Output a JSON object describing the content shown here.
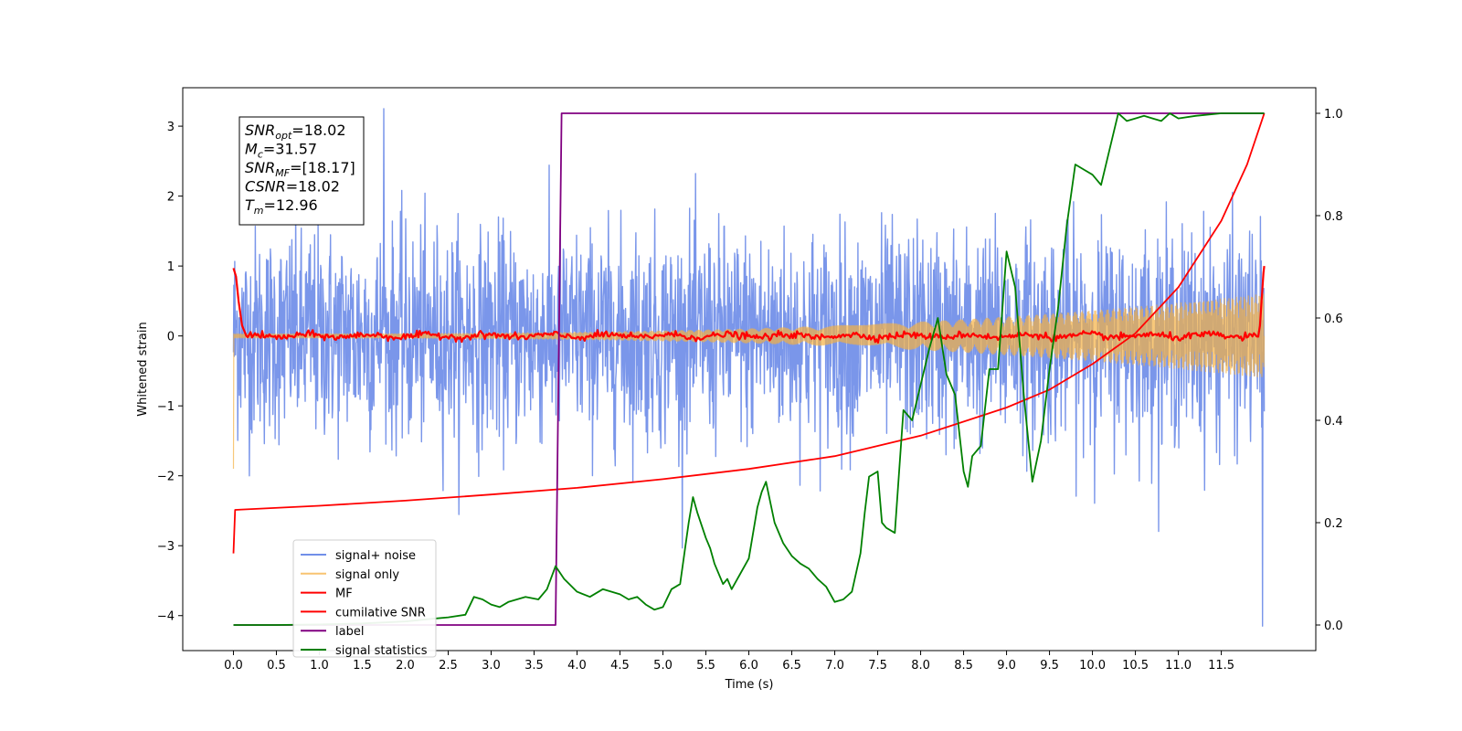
{
  "chart_data": {
    "type": "line",
    "xlabel": "Time (s)",
    "ylabel_left": "Whitened strain",
    "xlim": [
      -0.59,
      12.6
    ],
    "ylim_left": [
      -4.5,
      3.55
    ],
    "ylim_right": [
      -0.05,
      1.05
    ],
    "x_ticks": [
      "0.0",
      "0.5",
      "1.0",
      "1.5",
      "2.0",
      "2.5",
      "3.0",
      "3.5",
      "4.0",
      "4.5",
      "5.0",
      "5.5",
      "6.0",
      "6.5",
      "7.0",
      "7.5",
      "8.0",
      "8.5",
      "9.0",
      "9.5",
      "10.0",
      "10.5",
      "11.0",
      "11.5"
    ],
    "y_ticks_left": [
      "−4",
      "−3",
      "−2",
      "−1",
      "0",
      "1",
      "2",
      "3"
    ],
    "y_ticks_right": [
      "0.0",
      "0.2",
      "0.4",
      "0.6",
      "0.8",
      "1.0"
    ],
    "grid": false,
    "legend_placement": "lower-left",
    "stats_box": {
      "lines": [
        {
          "base": "SNR",
          "sub": "opt",
          "value": "=18.02"
        },
        {
          "base": "M",
          "sub": "c",
          "value": "=31.57"
        },
        {
          "base": "SNR",
          "sub": "MF",
          "value": "=[18.17]"
        },
        {
          "base": "CSNR",
          "sub": "",
          "value": "=18.02"
        },
        {
          "base": "T",
          "sub": "m",
          "value": "=12.96"
        }
      ]
    },
    "series": [
      {
        "name": "signal+ noise",
        "axis": "left",
        "color": "#4169e1",
        "kind": "noise",
        "t_range": [
          0.0,
          12.0
        ],
        "std": 0.75,
        "y_range_approx": [
          -4.15,
          3.25
        ]
      },
      {
        "name": "signal only",
        "axis": "left",
        "color": "#f5b041",
        "kind": "chirp",
        "t_range": [
          0.0,
          12.0
        ],
        "amplitude_start": 0.03,
        "amplitude_end": 0.6,
        "start_value": -1.9
      },
      {
        "name": "MF",
        "axis": "left",
        "color": "#ff0000",
        "kind": "mf",
        "points": [
          [
            0.0,
            0.97
          ],
          [
            0.03,
            0.85
          ],
          [
            0.06,
            0.5
          ],
          [
            0.1,
            0.15
          ],
          [
            0.15,
            0.1
          ],
          [
            0.25,
            0.05
          ],
          [
            12.0,
            0.0
          ],
          [
            12.0,
            0.05
          ],
          [
            11.95,
            0.15
          ],
          [
            11.99,
            0.9
          ],
          [
            12.0,
            1.0
          ]
        ],
        "noise_std": 0.025
      },
      {
        "name": "cumilative SNR",
        "axis": "right",
        "color": "#ff0000",
        "kind": "curve",
        "points": [
          [
            0.0,
            0.14
          ],
          [
            0.02,
            0.225
          ],
          [
            1.0,
            0.233
          ],
          [
            2.0,
            0.243
          ],
          [
            3.0,
            0.255
          ],
          [
            4.0,
            0.268
          ],
          [
            5.0,
            0.285
          ],
          [
            6.0,
            0.305
          ],
          [
            7.0,
            0.33
          ],
          [
            8.0,
            0.37
          ],
          [
            9.0,
            0.425
          ],
          [
            9.5,
            0.46
          ],
          [
            10.0,
            0.51
          ],
          [
            10.5,
            0.57
          ],
          [
            11.0,
            0.66
          ],
          [
            11.5,
            0.79
          ],
          [
            11.8,
            0.9
          ],
          [
            12.0,
            1.0
          ]
        ]
      },
      {
        "name": "label",
        "axis": "right",
        "color": "#800080",
        "kind": "step",
        "points": [
          [
            0.0,
            0.0
          ],
          [
            3.75,
            0.0
          ],
          [
            3.82,
            1.0
          ],
          [
            12.0,
            1.0
          ]
        ]
      },
      {
        "name": "signal statistics",
        "axis": "right",
        "color": "#008000",
        "kind": "curve",
        "points": [
          [
            0.0,
            0.0
          ],
          [
            0.5,
            0.0
          ],
          [
            1.0,
            0.001
          ],
          [
            1.5,
            0.003
          ],
          [
            2.0,
            0.007
          ],
          [
            2.3,
            0.012
          ],
          [
            2.5,
            0.015
          ],
          [
            2.7,
            0.02
          ],
          [
            2.8,
            0.055
          ],
          [
            2.9,
            0.05
          ],
          [
            3.0,
            0.04
          ],
          [
            3.1,
            0.035
          ],
          [
            3.2,
            0.045
          ],
          [
            3.3,
            0.05
          ],
          [
            3.4,
            0.055
          ],
          [
            3.55,
            0.05
          ],
          [
            3.65,
            0.07
          ],
          [
            3.75,
            0.115
          ],
          [
            3.85,
            0.09
          ],
          [
            4.0,
            0.065
          ],
          [
            4.15,
            0.055
          ],
          [
            4.3,
            0.07
          ],
          [
            4.5,
            0.06
          ],
          [
            4.6,
            0.05
          ],
          [
            4.7,
            0.055
          ],
          [
            4.8,
            0.04
          ],
          [
            4.9,
            0.03
          ],
          [
            5.0,
            0.035
          ],
          [
            5.1,
            0.07
          ],
          [
            5.2,
            0.08
          ],
          [
            5.3,
            0.2
          ],
          [
            5.35,
            0.25
          ],
          [
            5.4,
            0.22
          ],
          [
            5.5,
            0.17
          ],
          [
            5.55,
            0.15
          ],
          [
            5.6,
            0.12
          ],
          [
            5.7,
            0.08
          ],
          [
            5.75,
            0.09
          ],
          [
            5.8,
            0.07
          ],
          [
            5.9,
            0.1
          ],
          [
            6.0,
            0.13
          ],
          [
            6.1,
            0.23
          ],
          [
            6.15,
            0.26
          ],
          [
            6.2,
            0.28
          ],
          [
            6.3,
            0.2
          ],
          [
            6.4,
            0.16
          ],
          [
            6.5,
            0.135
          ],
          [
            6.6,
            0.12
          ],
          [
            6.7,
            0.11
          ],
          [
            6.8,
            0.09
          ],
          [
            6.9,
            0.075
          ],
          [
            7.0,
            0.045
          ],
          [
            7.1,
            0.05
          ],
          [
            7.2,
            0.065
          ],
          [
            7.3,
            0.14
          ],
          [
            7.35,
            0.22
          ],
          [
            7.4,
            0.29
          ],
          [
            7.5,
            0.3
          ],
          [
            7.55,
            0.2
          ],
          [
            7.6,
            0.19
          ],
          [
            7.7,
            0.18
          ],
          [
            7.8,
            0.42
          ],
          [
            7.9,
            0.4
          ],
          [
            8.0,
            0.47
          ],
          [
            8.1,
            0.54
          ],
          [
            8.2,
            0.6
          ],
          [
            8.3,
            0.49
          ],
          [
            8.4,
            0.45
          ],
          [
            8.5,
            0.3
          ],
          [
            8.55,
            0.27
          ],
          [
            8.6,
            0.33
          ],
          [
            8.7,
            0.35
          ],
          [
            8.8,
            0.5
          ],
          [
            8.9,
            0.5
          ],
          [
            9.0,
            0.73
          ],
          [
            9.1,
            0.66
          ],
          [
            9.2,
            0.45
          ],
          [
            9.3,
            0.28
          ],
          [
            9.4,
            0.36
          ],
          [
            9.5,
            0.5
          ],
          [
            9.6,
            0.62
          ],
          [
            9.7,
            0.78
          ],
          [
            9.75,
            0.84
          ],
          [
            9.8,
            0.9
          ],
          [
            9.9,
            0.89
          ],
          [
            10.0,
            0.88
          ],
          [
            10.1,
            0.86
          ],
          [
            10.2,
            0.93
          ],
          [
            10.3,
            1.0
          ],
          [
            10.4,
            0.985
          ],
          [
            10.5,
            0.99
          ],
          [
            10.6,
            0.995
          ],
          [
            10.7,
            0.99
          ],
          [
            10.8,
            0.985
          ],
          [
            10.9,
            1.0
          ],
          [
            11.0,
            0.99
          ],
          [
            11.2,
            0.995
          ],
          [
            11.5,
            1.0
          ],
          [
            12.0,
            1.0
          ]
        ]
      }
    ]
  }
}
